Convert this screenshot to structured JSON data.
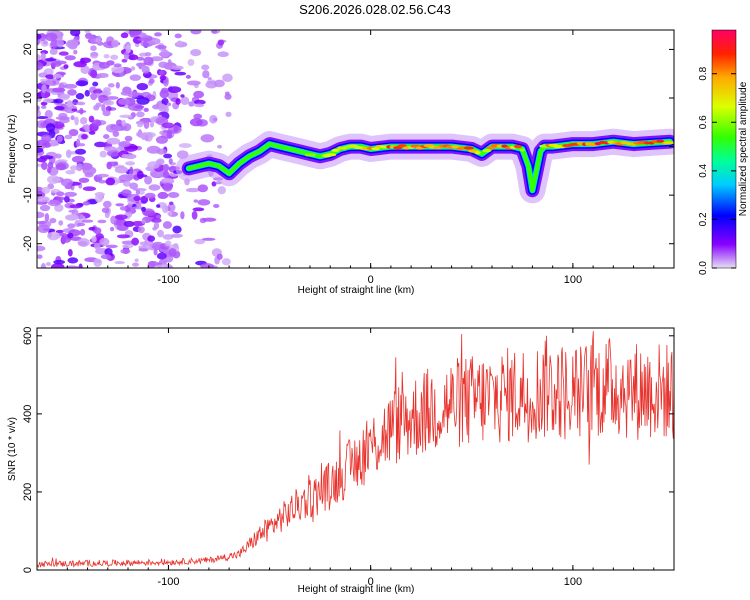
{
  "figure": {
    "title": "S206.2026.028.02.56.C43",
    "accent": "#e8322c"
  },
  "chart_data": [
    {
      "type": "heatmap",
      "xlabel": "Height of straight line (km)",
      "ylabel": "Frequency (Hz)",
      "xlim": [
        -165,
        150
      ],
      "ylim": [
        -25,
        24
      ],
      "xticks": [
        -100,
        0,
        100
      ],
      "yticks": [
        -20,
        -10,
        0,
        10,
        20
      ],
      "noise_region_x": [
        -165,
        -70
      ],
      "ridge": {
        "x": [
          -90,
          -85,
          -80,
          -75,
          -70,
          -65,
          -60,
          -55,
          -50,
          -45,
          -40,
          -35,
          -30,
          -25,
          -20,
          -15,
          -10,
          -5,
          0,
          10,
          20,
          30,
          40,
          50,
          55,
          60,
          70,
          75,
          78,
          80,
          82,
          84,
          86,
          90,
          100,
          110,
          120,
          130,
          140,
          148
        ],
        "y": [
          -4.5,
          -4,
          -3.5,
          -4,
          -5.5,
          -3.5,
          -2,
          -1,
          0.5,
          0,
          -0.5,
          -1,
          -1.5,
          -2,
          -1.5,
          -0.5,
          0,
          0,
          -0.5,
          0,
          0,
          0,
          0,
          -0.5,
          -1.5,
          0,
          0,
          -0.5,
          -4,
          -9,
          -5,
          -1,
          0,
          0,
          0.5,
          0.5,
          1,
          0.5,
          0.8,
          1
        ],
        "amplitude": [
          0.25,
          0.3,
          0.35,
          0.25,
          0.2,
          0.35,
          0.5,
          0.55,
          0.5,
          0.5,
          0.6,
          0.55,
          0.6,
          0.6,
          0.7,
          0.75,
          0.85,
          0.8,
          0.85,
          0.9,
          0.95,
          0.95,
          0.95,
          0.9,
          0.5,
          0.95,
          0.95,
          0.8,
          0.4,
          0.3,
          0.35,
          0.7,
          0.85,
          0.9,
          0.9,
          0.95,
          0.95,
          0.9,
          0.95,
          0.95
        ]
      },
      "colorbar": {
        "label": "Normalized spectral amplitude",
        "range": [
          0,
          0.98
        ],
        "ticks": [
          "0.0",
          "0.2",
          "0.4",
          "0.6",
          "0.8"
        ]
      }
    },
    {
      "type": "line",
      "xlabel": "Height of straight line (km)",
      "ylabel": "SNR (10 * v/v)",
      "xlim": [
        -165,
        150
      ],
      "ylim": [
        0,
        620
      ],
      "xticks": [
        -100,
        0,
        100
      ],
      "yticks": [
        0,
        200,
        400,
        600
      ],
      "color": "#e8322c",
      "baseline": {
        "x": [
          -165,
          -100,
          -80,
          -65,
          -55,
          -45,
          -35,
          -25,
          -15,
          -5,
          5,
          15,
          25,
          35,
          45,
          60,
          70,
          80,
          90,
          100,
          110,
          120,
          130,
          140,
          150
        ],
        "y": [
          15,
          20,
          25,
          40,
          90,
          130,
          170,
          200,
          240,
          290,
          340,
          380,
          400,
          420,
          430,
          440,
          450,
          455,
          465,
          450,
          465,
          470,
          460,
          460,
          455
        ]
      },
      "spikes": [
        {
          "x": 87,
          "y": 600
        },
        {
          "x": 110,
          "y": 612
        },
        {
          "x": 108,
          "y": 270
        }
      ]
    }
  ]
}
